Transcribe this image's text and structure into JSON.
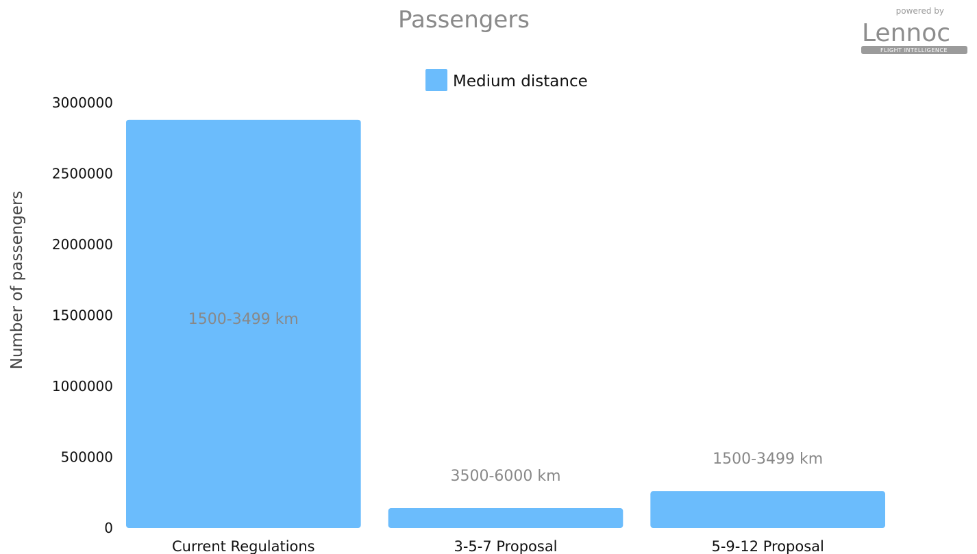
{
  "chart_data": {
    "type": "bar",
    "title": "Passengers",
    "xlabel": "",
    "ylabel": "Number of passengers",
    "categories": [
      "Current Regulations",
      "3-5-7 Proposal",
      "5-9-12 Proposal"
    ],
    "series": [
      {
        "name": "Medium distance",
        "color": "#6bbcfc",
        "values": [
          2880000,
          140000,
          260000
        ],
        "labels": [
          "1500-3499 km",
          "3500-6000 km",
          "1500-3499 km"
        ]
      }
    ],
    "yticks": [
      "0",
      "500000",
      "1000000",
      "1500000",
      "2000000",
      "2500000",
      "3000000"
    ],
    "ylim": [
      0,
      3000000
    ],
    "grid": false,
    "legend_position": "top-center"
  },
  "logo": {
    "powered_by": "powered by",
    "wordmark": "Lennoc",
    "tagline": "FLIGHT INTELLIGENCE"
  }
}
